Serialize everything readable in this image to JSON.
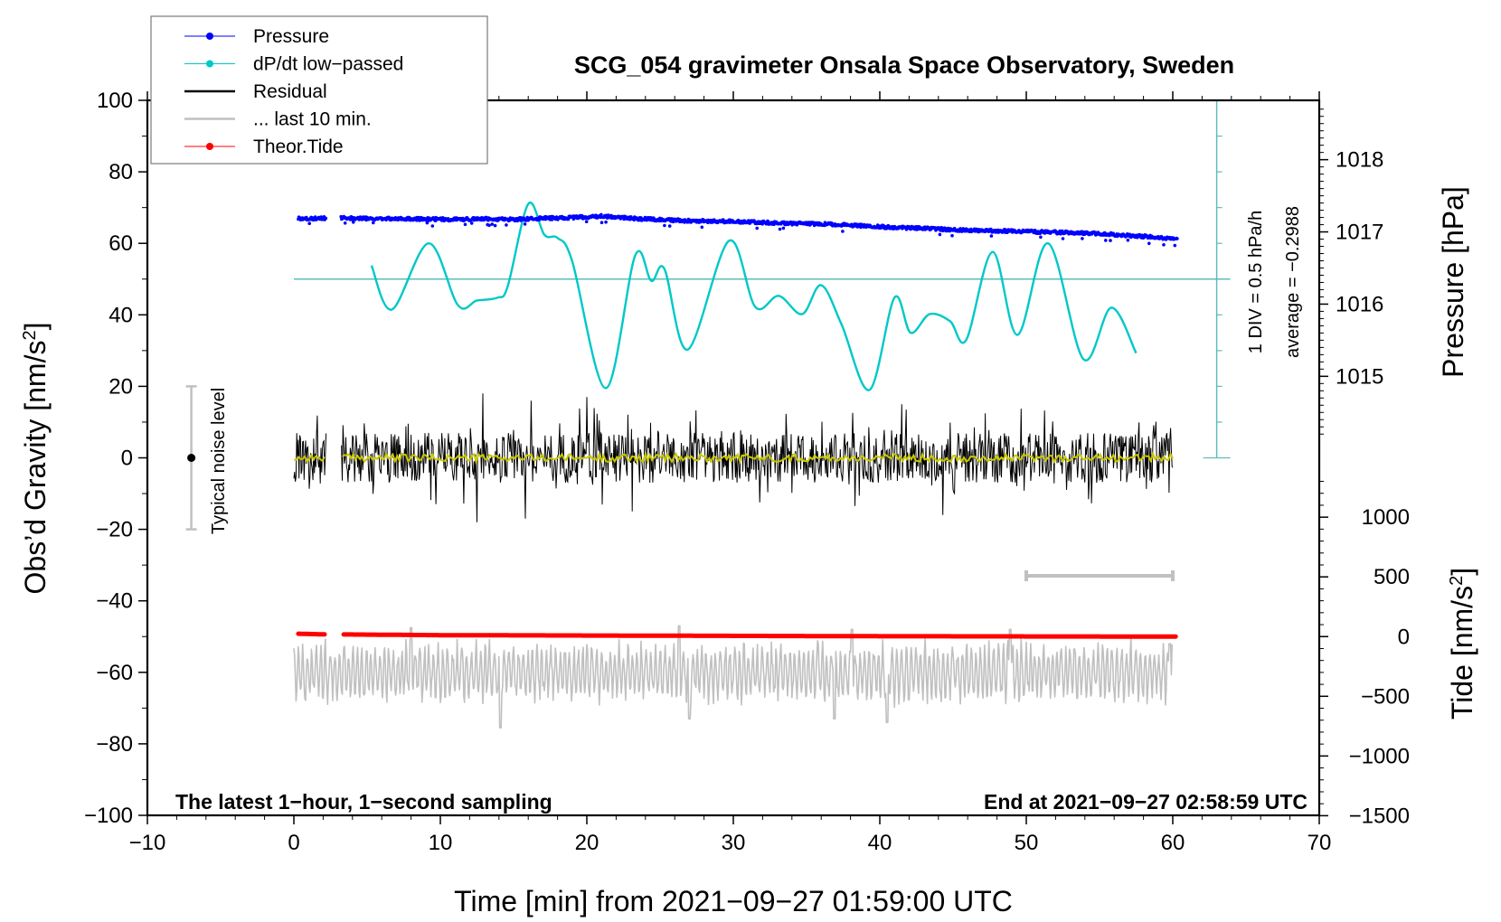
{
  "chart_data": {
    "type": "line",
    "title": "SCG_054 gravimeter Onsala Space Observatory, Sweden",
    "xlabel": "Time [min] from 2021−09−27 01:59:00 UTC",
    "ylabel_left": "Obs’d Gravity [nm/s²]",
    "ylabel_right_pressure": "Pressure [hPa]",
    "ylabel_right_tide": "Tide [nm/s²]",
    "xlim": [
      -10,
      70
    ],
    "ylim": [
      -100,
      100
    ],
    "x_ticks": [
      "−10",
      "0",
      "10",
      "20",
      "30",
      "40",
      "50",
      "60",
      "70"
    ],
    "x_tick_values": [
      -10,
      0,
      10,
      20,
      30,
      40,
      50,
      60,
      70
    ],
    "y_ticks": [
      "100",
      "80",
      "60",
      "40",
      "20",
      "0",
      "−20",
      "−40",
      "−60",
      "−80",
      "−100"
    ],
    "y_tick_values": [
      100,
      80,
      60,
      40,
      20,
      0,
      -20,
      -40,
      -60,
      -80,
      -100
    ],
    "pressure_axis": {
      "ticks": [
        "1018",
        "1017",
        "1016",
        "1015"
      ],
      "tick_values": [
        1018,
        1017,
        1016,
        1015
      ],
      "left_equiv_of_1017": 63.2,
      "left_units_per_hPa": 20.2
    },
    "tide_axis": {
      "ticks": [
        "1000",
        "500",
        "0",
        "−500",
        "−1000",
        "−1500"
      ],
      "tick_values": [
        1000,
        500,
        0,
        -500,
        -1000,
        -1500
      ],
      "left_equiv_of_0": -50,
      "left_units_per_500": 16.7
    },
    "annotations": {
      "bottom_left": "The latest 1−hour, 1−second sampling",
      "bottom_right": "End at 2021−09−27 02:58:59 UTC",
      "div_label": "1 DIV = 0.5 hPa/h",
      "average_label": "average = −0.2988",
      "noise_label": "Typical noise level",
      "noise_bar": {
        "x": -7,
        "center": 0,
        "low": -20,
        "high": 20
      },
      "last10_bar": {
        "x_start": 50,
        "x_end": 60,
        "y": -33
      },
      "dpdt_zero_line": 50,
      "dpdt_scale": {
        "x": 63,
        "y_top": 100,
        "y_bottom": 0,
        "div_step": 10
      }
    },
    "legend": {
      "placement": "top-left",
      "entries": [
        {
          "label": "Pressure",
          "color": "#0000ff",
          "marker": "dot"
        },
        {
          "label": "dP/dt low−passed",
          "color": "#00c8c8",
          "marker": "dot"
        },
        {
          "label": "Residual",
          "color": "#000000",
          "marker": "line"
        },
        {
          "label": "... last 10 min.",
          "color": "#c0c0c0",
          "marker": "line"
        },
        {
          "label": "Theor.Tide",
          "color": "#ff0000",
          "marker": "dot"
        }
      ]
    },
    "series": [
      {
        "name": "Pressure",
        "color": "#0000ff",
        "unit_note": "plotted in left-axis units",
        "gaps": [
          [
            2.2,
            3.2
          ]
        ],
        "x": [
          0.3,
          1,
          2,
          3.4,
          5,
          7,
          9,
          11,
          13,
          15,
          17,
          19,
          21,
          23,
          25,
          27,
          29,
          31,
          33,
          35,
          37,
          39,
          41,
          43,
          45,
          47,
          49,
          51,
          53,
          55,
          57,
          59,
          60.3
        ],
        "values": [
          67.0,
          66.9,
          67.0,
          67.1,
          66.9,
          66.9,
          66.8,
          66.7,
          66.9,
          66.7,
          67.0,
          67.2,
          67.6,
          67.0,
          66.6,
          66.3,
          66.2,
          66.0,
          65.7,
          65.5,
          65.3,
          64.9,
          64.4,
          64.2,
          63.8,
          63.6,
          63.4,
          63.2,
          63.0,
          62.7,
          62.2,
          61.7,
          61.2
        ]
      },
      {
        "name": "dP/dt low−passed",
        "color": "#00c8c8",
        "x": [
          5.3,
          6.7,
          9.2,
          11.2,
          12.5,
          13.9,
          14.6,
          16.0,
          17.1,
          18.0,
          19.0,
          21.3,
          23.3,
          24.4,
          25.3,
          26.9,
          29.7,
          31.5,
          33.1,
          34.7,
          36.0,
          37.4,
          39.3,
          41.0,
          42.1,
          43.4,
          44.8,
          45.9,
          47.7,
          49.4,
          51.5,
          53.9,
          55.8,
          57.5
        ],
        "values": [
          53.8,
          41.5,
          60.0,
          42.7,
          44.0,
          44.8,
          48.0,
          71.0,
          62.4,
          61.5,
          55.0,
          19.5,
          56.6,
          49.5,
          52.8,
          30.3,
          60.7,
          42.2,
          45.3,
          40.2,
          48.3,
          37.2,
          19.0,
          44.8,
          35.0,
          40.2,
          38.2,
          33.0,
          57.6,
          34.4,
          60.0,
          27.6,
          42.0,
          29.3
        ]
      },
      {
        "name": "Residual",
        "color": "#000000",
        "gaps": [
          [
            2.2,
            3.2
          ]
        ],
        "x_start": 0,
        "x_end": 60,
        "typical_range": [
          -10,
          10
        ],
        "peaks_max": [
          [
            12.9,
            18
          ],
          [
            16.2,
            16
          ],
          [
            41.5,
            15
          ],
          [
            20.0,
            17
          ]
        ],
        "peaks_min": [
          [
            12.5,
            -18
          ],
          [
            15.8,
            -17
          ],
          [
            44.3,
            -16
          ],
          [
            23.1,
            -15
          ]
        ],
        "smoothed_color": "#c8c800",
        "smoothed_mean": 0
      },
      {
        "name": "... last 10 min.",
        "color": "#c0c0c0",
        "x_start": 0,
        "x_end": 60,
        "center": -60,
        "typical_range": [
          -68,
          -52
        ],
        "peaks_max": [
          [
            8.0,
            -47.5
          ],
          [
            26.3,
            -47
          ],
          [
            38.1,
            -48
          ],
          [
            48.9,
            -48
          ],
          [
            59.8,
            -52
          ]
        ],
        "peaks_min": [
          [
            14.1,
            -75.5
          ],
          [
            27.0,
            -73
          ],
          [
            36.9,
            -73
          ],
          [
            40.5,
            -74
          ]
        ]
      },
      {
        "name": "Theor.Tide",
        "color": "#ff0000",
        "gaps": [
          [
            2.2,
            3.4
          ]
        ],
        "x": [
          0.3,
          2.2,
          3.4,
          10,
          20,
          30,
          40,
          50,
          60.3
        ],
        "values": [
          -49.2,
          -49.4,
          -49.4,
          -49.6,
          -49.7,
          -49.8,
          -49.9,
          -49.95,
          -50.0
        ]
      }
    ]
  }
}
